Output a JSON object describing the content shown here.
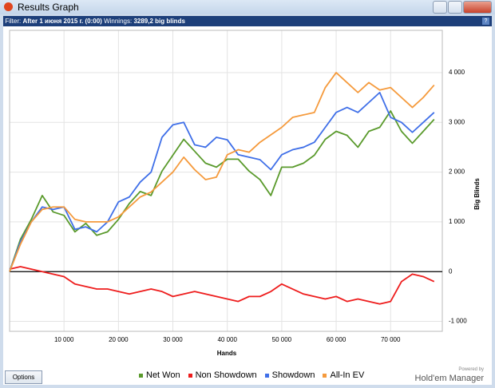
{
  "window": {
    "title": "Results Graph"
  },
  "filter_bar": {
    "filter_label": "Filter:",
    "filter_value": "After 1 июня 2015 г. (0:00)",
    "winnings_label": "Winnings:",
    "winnings_value": "3289,2 big blinds"
  },
  "footer": {
    "options_button": "Options",
    "powered_by": "Powered by",
    "brand": "Hold'em Manager"
  },
  "chart_data": {
    "type": "line",
    "x_label": "Hands",
    "y_label": "Big Blinds",
    "x": [
      0,
      2000,
      4000,
      6000,
      8000,
      10000,
      12000,
      14000,
      16000,
      18000,
      20000,
      22000,
      24000,
      26000,
      28000,
      30000,
      32000,
      34000,
      36000,
      38000,
      40000,
      42000,
      44000,
      46000,
      48000,
      50000,
      52000,
      54000,
      56000,
      58000,
      60000,
      62000,
      64000,
      66000,
      68000,
      70000,
      72000,
      74000,
      76000,
      78000
    ],
    "series": [
      {
        "name": "Net Won",
        "color": "#5a9a2c",
        "values": [
          0,
          650,
          1050,
          1530,
          1200,
          1130,
          800,
          970,
          730,
          800,
          1050,
          1370,
          1610,
          1530,
          2020,
          2340,
          2660,
          2420,
          2180,
          2100,
          2260,
          2260,
          2020,
          1850,
          1530,
          2100,
          2100,
          2180,
          2340,
          2660,
          2820,
          2740,
          2500,
          2820,
          2900,
          3230,
          2820,
          2580,
          2820,
          3060
        ]
      },
      {
        "name": "Non Showdown",
        "color": "#ee1c1c",
        "values": [
          50,
          100,
          50,
          0,
          -50,
          -100,
          -250,
          -300,
          -350,
          -350,
          -400,
          -450,
          -400,
          -350,
          -400,
          -500,
          -450,
          -400,
          -450,
          -500,
          -550,
          -600,
          -500,
          -500,
          -400,
          -250,
          -350,
          -450,
          -500,
          -550,
          -500,
          -600,
          -550,
          -600,
          -650,
          -600,
          -200,
          -50,
          -100,
          -200
        ]
      },
      {
        "name": "Showdown",
        "color": "#3f6fe8",
        "values": [
          0,
          600,
          1000,
          1300,
          1250,
          1300,
          850,
          900,
          800,
          1000,
          1400,
          1500,
          1800,
          2000,
          2700,
          2950,
          3000,
          2550,
          2500,
          2700,
          2650,
          2350,
          2300,
          2250,
          2050,
          2350,
          2450,
          2500,
          2600,
          2900,
          3200,
          3300,
          3200,
          3400,
          3600,
          3100,
          3000,
          2800,
          3000,
          3200
        ]
      },
      {
        "name": "All-In EV",
        "color": "#f59a3c",
        "values": [
          0,
          550,
          1000,
          1250,
          1300,
          1300,
          1050,
          1000,
          1000,
          1000,
          1100,
          1300,
          1500,
          1600,
          1800,
          2000,
          2300,
          2050,
          1850,
          1900,
          2350,
          2450,
          2400,
          2600,
          2750,
          2900,
          3100,
          3150,
          3200,
          3700,
          4000,
          3800,
          3600,
          3800,
          3650,
          3700,
          3500,
          3300,
          3500,
          3750
        ]
      }
    ],
    "xlim": [
      0,
      79500
    ],
    "ylim": [
      -1200,
      4850
    ],
    "xticks": [
      {
        "value": 10000,
        "label": "10 000"
      },
      {
        "value": 20000,
        "label": "20 000"
      },
      {
        "value": 30000,
        "label": "30 000"
      },
      {
        "value": 40000,
        "label": "40 000"
      },
      {
        "value": 50000,
        "label": "50 000"
      },
      {
        "value": 60000,
        "label": "60 000"
      },
      {
        "value": 70000,
        "label": "70 000"
      }
    ],
    "yticks": [
      {
        "value": -1000,
        "label": "-1 000"
      },
      0,
      {
        "value": 1000,
        "label": "1 000"
      },
      {
        "value": 2000,
        "label": "2 000"
      },
      {
        "value": 3000,
        "label": "3 000"
      },
      {
        "value": 4000,
        "label": "4 000"
      }
    ],
    "grid": true
  }
}
